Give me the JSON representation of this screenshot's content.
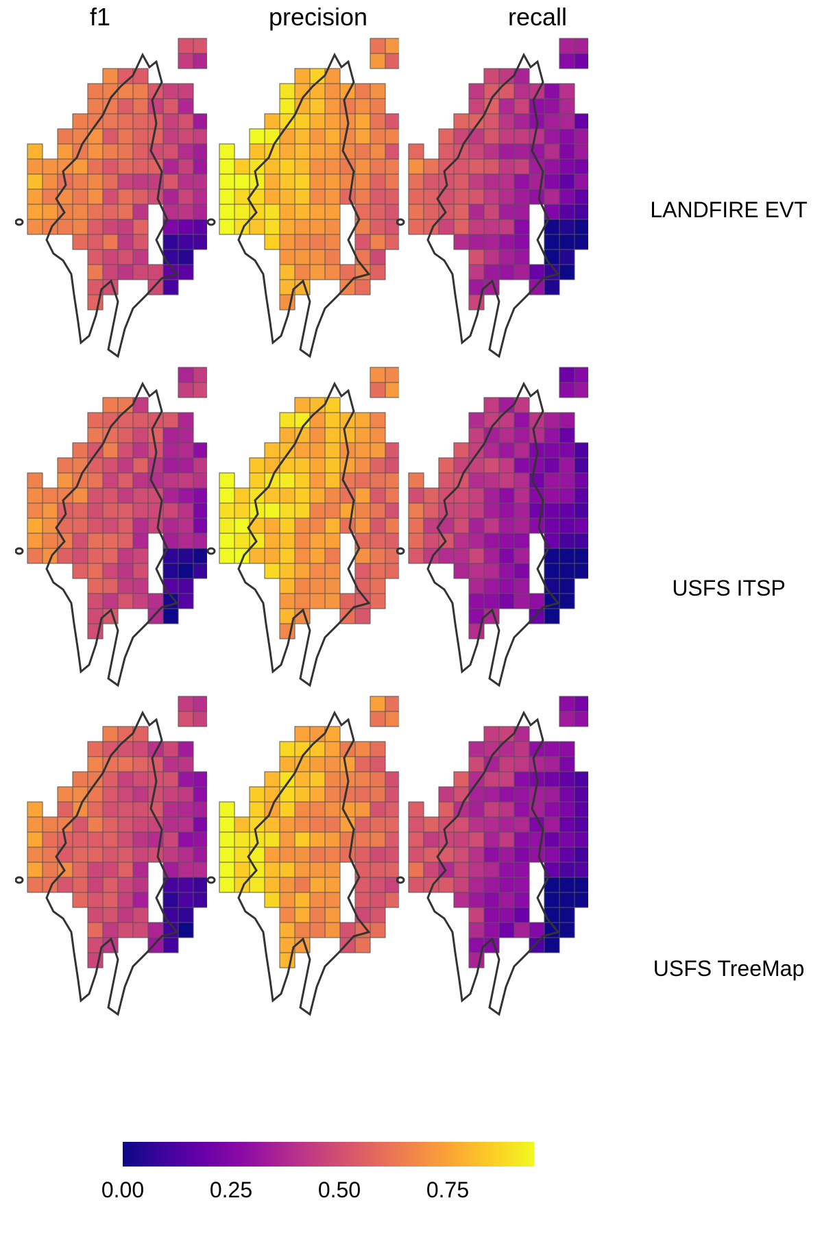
{
  "columns": [
    "f1",
    "precision",
    "recall"
  ],
  "rows": [
    "LANDFIRE EVT",
    "USFS ITSP",
    "USFS TreeMap"
  ],
  "legend": {
    "ticks": [
      "0.00",
      "0.25",
      "0.50",
      "0.75"
    ],
    "tick_values": [
      0,
      0.25,
      0.5,
      0.75
    ],
    "range": [
      0,
      0.95
    ],
    "palette": "plasma"
  },
  "colors": {
    "outline": "#333333",
    "cell_border": "#555555"
  },
  "chart_data": {
    "type": "heatmap",
    "description_metric_grid": "Gridded map tiles colored by metric value (0-1), one panel per column metric x row dataset",
    "panels": [
      {
        "row": "LANDFIRE EVT",
        "metric": "f1",
        "mean_level": 0.55
      },
      {
        "row": "LANDFIRE EVT",
        "metric": "precision",
        "mean_level": 0.75
      },
      {
        "row": "LANDFIRE EVT",
        "metric": "recall",
        "mean_level": 0.4
      },
      {
        "row": "USFS ITSP",
        "metric": "f1",
        "mean_level": 0.5
      },
      {
        "row": "USFS ITSP",
        "metric": "precision",
        "mean_level": 0.75
      },
      {
        "row": "USFS ITSP",
        "metric": "recall",
        "mean_level": 0.35
      },
      {
        "row": "USFS TreeMap",
        "metric": "f1",
        "mean_level": 0.5
      },
      {
        "row": "USFS TreeMap",
        "metric": "precision",
        "mean_level": 0.72
      },
      {
        "row": "USFS TreeMap",
        "metric": "recall",
        "mean_level": 0.35
      }
    ]
  }
}
